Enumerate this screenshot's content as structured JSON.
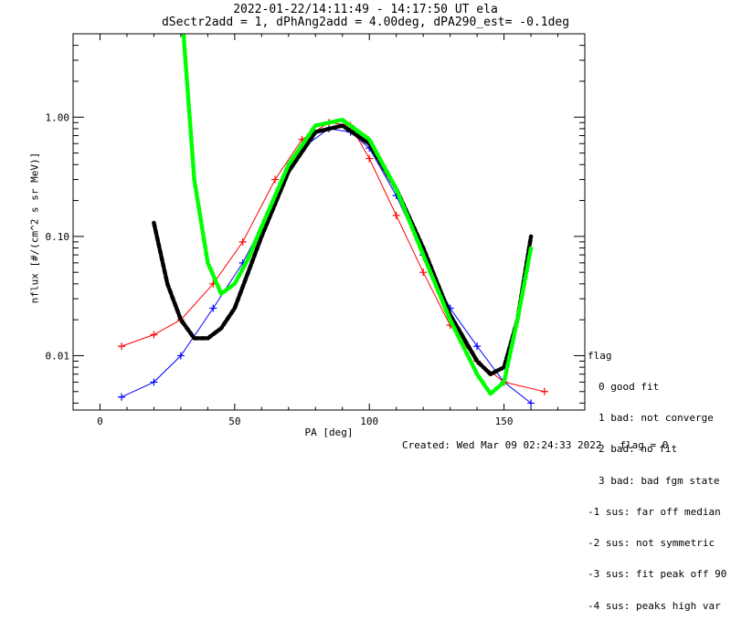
{
  "chart_data": {
    "type": "scatter",
    "title": "2022-01-22/14:11:49 - 14:17:50 UT ela",
    "subtitle": "dSectr2add = 1, dPhAng2add = 4.00deg, dPA290_est=  -0.1deg",
    "xlabel": "PA [deg]",
    "ylabel": "nflux [#/(cm^2 s sr MeV)]",
    "xlim": [
      -10,
      180
    ],
    "ylim": [
      0.0035,
      5.0
    ],
    "y_scale": "log",
    "x_ticks": [
      0,
      50,
      100,
      150
    ],
    "x_tick_labels": [
      "0",
      "50",
      "100",
      "150"
    ],
    "y_ticks": [
      0.01,
      0.1,
      1.0
    ],
    "y_tick_labels": [
      "0.01",
      "0.10",
      "1.00"
    ],
    "grid": false,
    "series": [
      {
        "color": "#0000ff",
        "x": [
          8,
          20,
          30,
          42,
          53,
          65,
          75,
          85,
          93,
          100,
          110,
          120,
          130,
          140,
          150,
          160
        ],
        "y": [
          0.0045,
          0.006,
          0.01,
          0.025,
          0.06,
          0.2,
          0.55,
          0.8,
          0.75,
          0.55,
          0.22,
          0.07,
          0.025,
          0.012,
          0.006,
          0.004
        ]
      },
      {
        "color": "#ff0000",
        "x": [
          8,
          20,
          30,
          42,
          53,
          65,
          75,
          85,
          93,
          100,
          110,
          120,
          130,
          140,
          150,
          165
        ],
        "y": [
          0.012,
          0.015,
          0.02,
          0.04,
          0.09,
          0.3,
          0.65,
          0.9,
          0.85,
          0.45,
          0.15,
          0.05,
          0.018,
          0.009,
          0.006,
          0.005
        ]
      },
      {
        "color": "#000000",
        "x": [
          20,
          25,
          30,
          35,
          40,
          45,
          50,
          55,
          60,
          70,
          80,
          90,
          100,
          110,
          120,
          130,
          140,
          145,
          150,
          155,
          160
        ],
        "y": [
          0.13,
          0.04,
          0.02,
          0.014,
          0.014,
          0.017,
          0.025,
          0.05,
          0.1,
          0.35,
          0.75,
          0.85,
          0.6,
          0.25,
          0.08,
          0.022,
          0.009,
          0.007,
          0.008,
          0.02,
          0.1
        ]
      },
      {
        "color": "#00ff00",
        "x": [
          31,
          35,
          40,
          45,
          50,
          55,
          60,
          70,
          80,
          90,
          100,
          110,
          120,
          130,
          140,
          145,
          150,
          155,
          160
        ],
        "y": [
          5.0,
          0.3,
          0.06,
          0.033,
          0.04,
          0.065,
          0.12,
          0.4,
          0.85,
          0.95,
          0.65,
          0.25,
          0.07,
          0.02,
          0.007,
          0.0048,
          0.006,
          0.02,
          0.08
        ]
      }
    ]
  },
  "legend": {
    "title": "flag",
    "items": [
      "0 good fit",
      "1 bad: not converge",
      "2 bad: no fit",
      "3 bad: bad fgm state",
      "-1 sus: far off median",
      "-2 sus: not symmetric",
      "-3 sus: fit peak off 90",
      "-4 sus: peaks high var"
    ]
  },
  "footer": {
    "created": "Created: Wed Mar 09 02:24:33 2022",
    "flag": "flag = 0"
  }
}
